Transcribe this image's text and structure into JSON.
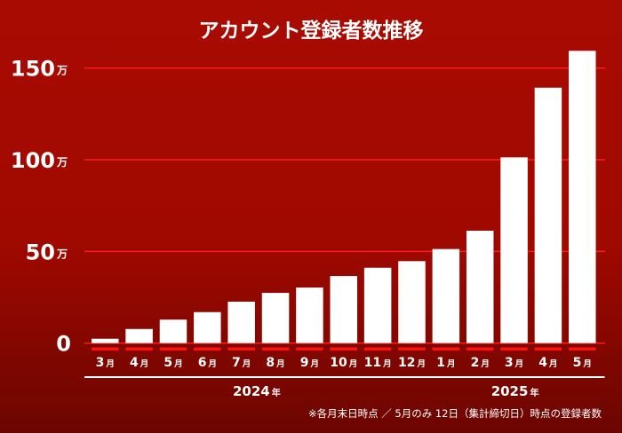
{
  "chart_data": {
    "type": "bar",
    "title": "アカウント登録者数推移",
    "unit": "万",
    "ylim": [
      0,
      160
    ],
    "yticks": [
      0,
      50,
      100,
      150
    ],
    "ytick_labels": [
      "0",
      "50",
      "100",
      "150"
    ],
    "grid": true,
    "categories": [
      "3",
      "4",
      "5",
      "6",
      "7",
      "8",
      "9",
      "10",
      "11",
      "12",
      "1",
      "2",
      "3",
      "4",
      "5"
    ],
    "month_suffix": "月",
    "values": [
      2.4,
      7.7,
      12.8,
      16.9,
      22.6,
      27.4,
      30.3,
      36.6,
      41.1,
      44.7,
      51.3,
      61.3,
      101.3,
      139.3,
      159.4
    ],
    "year_groups": [
      {
        "year": "2024",
        "suffix": "年",
        "start": 0,
        "end": 9
      },
      {
        "year": "2025",
        "suffix": "年",
        "start": 10,
        "end": 14
      }
    ],
    "footnote": "※各月末日時点 ／ 5月のみ 12日（集計締切日）時点の登録者数",
    "colors": {
      "background_top": "#a80b02",
      "background_bottom": "#6c0500",
      "bar": "#ffffff",
      "gridline": "#ff1a1a",
      "marker": "#ff1010"
    }
  }
}
